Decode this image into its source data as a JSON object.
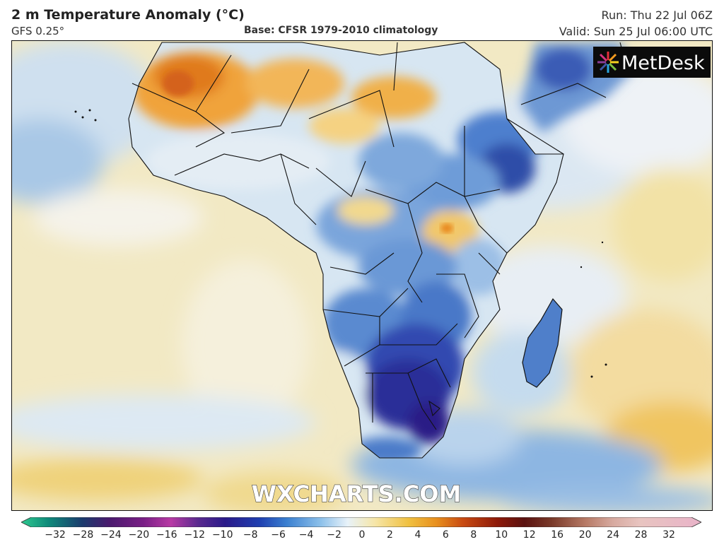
{
  "header": {
    "title": "2 m Temperature Anomaly (°C)",
    "model": "GFS 0.25°",
    "base": "Base: CFSR 1979-2010 climatology",
    "run": "Run: Thu 22 Jul 06Z",
    "valid": "Valid: Sun 25 Jul 06:00 UTC"
  },
  "brand": {
    "logo_text": "MetDesk",
    "watermark": "WXCHARTS.COM"
  },
  "colorbar": {
    "ticks": [
      "−32",
      "−28",
      "−24",
      "−20",
      "−16",
      "−12",
      "−10",
      "−8",
      "−6",
      "−4",
      "−2",
      "0",
      "2",
      "4",
      "6",
      "8",
      "10",
      "12",
      "16",
      "20",
      "24",
      "28",
      "32"
    ],
    "colors": [
      "#2ec98f",
      "#0e8a7a",
      "#1b3b6e",
      "#4b1a6e",
      "#7a1f86",
      "#b83aa5",
      "#5a2a8f",
      "#2a1a8a",
      "#1f3fb0",
      "#3a7fd0",
      "#8cc0ea",
      "#e8f2f9",
      "#f6e6a8",
      "#f0c040",
      "#e8901e",
      "#c84a12",
      "#8e1a0a",
      "#5a1210",
      "#7a3a2a",
      "#b77a66",
      "#d7aaa0",
      "#e8c4c0",
      "#e9b3c9"
    ],
    "stops": [
      0.0,
      0.04,
      0.09,
      0.13,
      0.18,
      0.22,
      0.26,
      0.3,
      0.35,
      0.39,
      0.44,
      0.48,
      0.52,
      0.57,
      0.61,
      0.65,
      0.7,
      0.74,
      0.78,
      0.83,
      0.87,
      0.91,
      1.0
    ]
  },
  "map": {
    "region": "Africa and surrounding oceans",
    "colors": {
      "ocean_warm": "#f3e6b1",
      "ocean_pale": "#eef2f6",
      "cold_blue": "#6a9bd6",
      "deep_blue": "#2b3fa8",
      "very_deep": "#3a2a8e",
      "warm_orange": "#f0a43a",
      "hot_orange": "#e87a1e",
      "border": "#111111"
    }
  }
}
